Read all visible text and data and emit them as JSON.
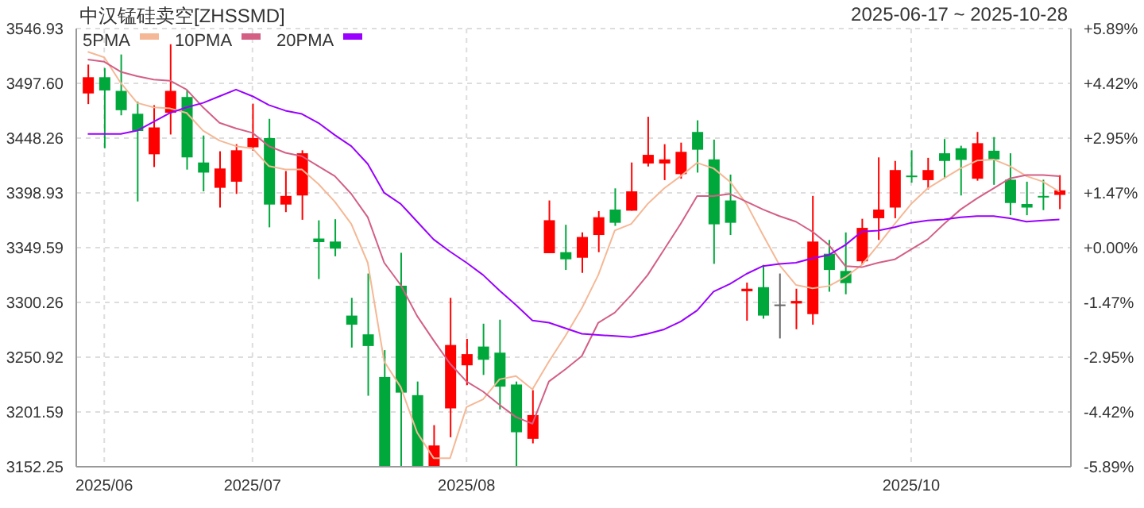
{
  "chart_data": {
    "type": "candlestick",
    "title": "中汉锰硅卖空[ZHSSMD]",
    "subtitle": "2025-06-17 ~ 2025-10-28",
    "categories": [
      null,
      "2025/06",
      null,
      null,
      null,
      null,
      null,
      null,
      null,
      null,
      "2025/07",
      null,
      null,
      null,
      null,
      null,
      null,
      null,
      null,
      null,
      null,
      null,
      null,
      "2025/08",
      null,
      null,
      null,
      null,
      null,
      null,
      null,
      null,
      null,
      null,
      null,
      null,
      null,
      null,
      null,
      null,
      null,
      null,
      null,
      null,
      null,
      null,
      null,
      null,
      null,
      null,
      "2025/10",
      null,
      null,
      null,
      null,
      null,
      null,
      null,
      null,
      null
    ],
    "ohlc": [
      [
        3488.5,
        3514.5,
        3478.9,
        3503.1
      ],
      [
        3503.1,
        3511.3,
        3439.1,
        3491.2
      ],
      [
        3490.8,
        3523.6,
        3468.8,
        3473.4
      ],
      [
        3470.2,
        3481.2,
        3391.2,
        3454.7
      ],
      [
        3433.7,
        3477.9,
        3422.2,
        3457.9
      ],
      [
        3471.1,
        3532.8,
        3451.5,
        3490.8
      ],
      [
        3485.3,
        3491.7,
        3419.9,
        3430.9
      ],
      [
        3426.3,
        3450.6,
        3400.3,
        3417.2
      ],
      [
        3403.5,
        3436.4,
        3385.7,
        3420.9
      ],
      [
        3409.0,
        3442.8,
        3398.0,
        3437.3
      ],
      [
        3440.0,
        3479.3,
        3436.9,
        3448.3
      ],
      [
        3448.3,
        3465.6,
        3367.9,
        3388.4
      ],
      [
        3388.4,
        3418.6,
        3381.6,
        3396.2
      ],
      [
        3396.6,
        3437.3,
        3374.7,
        3434.6
      ],
      [
        3357.8,
        3374.2,
        3321.3,
        3354.6
      ],
      [
        3355.1,
        3375.2,
        3341.8,
        3348.7
      ],
      [
        3288.4,
        3304.4,
        3259.6,
        3280.2
      ],
      [
        3271.5,
        3326.3,
        3216.2,
        3261.0
      ],
      [
        3233.1,
        3257.3,
        3152.3,
        3152.3
      ],
      [
        3315.3,
        3345.0,
        3152.3,
        3219.0
      ],
      [
        3216.7,
        3229.0,
        3152.3,
        3152.3
      ],
      [
        3152.3,
        3189.7,
        3152.3,
        3171.4
      ],
      [
        3204.8,
        3304.4,
        3178.8,
        3261.9
      ],
      [
        3243.6,
        3267.4,
        3225.8,
        3253.7
      ],
      [
        3260.5,
        3281.1,
        3234.9,
        3248.6
      ],
      [
        3255.0,
        3284.7,
        3203.9,
        3224.4
      ],
      [
        3226.3,
        3229.0,
        3152.3,
        3183.3
      ],
      [
        3177.4,
        3221.2,
        3173.3,
        3198.8
      ],
      [
        3344.6,
        3392.1,
        3344.6,
        3374.3
      ],
      [
        3345.5,
        3370.2,
        3329.5,
        3339.1
      ],
      [
        3340.5,
        3363.3,
        3326.8,
        3359.2
      ],
      [
        3361.0,
        3382.5,
        3345.5,
        3377.0
      ],
      [
        3383.9,
        3403.0,
        3369.2,
        3372.0
      ],
      [
        3382.9,
        3426.3,
        3382.9,
        3400.3
      ],
      [
        3425.4,
        3467.5,
        3422.7,
        3433.2
      ],
      [
        3425.4,
        3442.8,
        3410.4,
        3429.1
      ],
      [
        3415.8,
        3444.2,
        3411.7,
        3435.9
      ],
      [
        3453.8,
        3464.3,
        3417.2,
        3437.8
      ],
      [
        3429.1,
        3446.9,
        3335.0,
        3370.6
      ],
      [
        3392.1,
        3415.4,
        3361.0,
        3372.0
      ],
      [
        3310.3,
        3318.1,
        3283.8,
        3312.6
      ],
      [
        3314.0,
        3334.1,
        3285.6,
        3288.4
      ],
      [
        3298.4,
        3326.3,
        3267.8,
        3298.4
      ],
      [
        3299.3,
        3312.6,
        3276.1,
        3301.6
      ],
      [
        3289.7,
        3396.2,
        3280.2,
        3355.1
      ],
      [
        3344.1,
        3356.5,
        3309.9,
        3329.5
      ],
      [
        3328.6,
        3363.3,
        3307.6,
        3317.6
      ],
      [
        3337.3,
        3375.6,
        3334.1,
        3367.4
      ],
      [
        3376.1,
        3430.9,
        3356.5,
        3383.9
      ],
      [
        3385.7,
        3427.7,
        3376.1,
        3419.5
      ],
      [
        3414.5,
        3437.3,
        3408.1,
        3414.0
      ],
      [
        3410.4,
        3430.5,
        3402.1,
        3419.5
      ],
      [
        3434.6,
        3447.4,
        3411.7,
        3427.7
      ],
      [
        3439.1,
        3441.4,
        3396.6,
        3428.6
      ],
      [
        3411.7,
        3453.8,
        3409.9,
        3443.7
      ],
      [
        3436.9,
        3449.2,
        3406.2,
        3429.1
      ],
      [
        3410.8,
        3434.6,
        3378.8,
        3389.8
      ],
      [
        3388.9,
        3409.0,
        3378.8,
        3385.7
      ],
      [
        3396.2,
        3410.8,
        3383.4,
        3395.7
      ],
      [
        3397.1,
        3414.9,
        3384.3,
        3401.2
      ]
    ],
    "colors": [
      "#ff0000",
      "#00a83c",
      "#00a83c",
      "#00a83c",
      "#ff0000",
      "#ff0000",
      "#00a83c",
      "#00a83c",
      "#ff0000",
      "#ff0000",
      "#ff0000",
      "#00a83c",
      "#ff0000",
      "#ff0000",
      "#00a83c",
      "#00a83c",
      "#00a83c",
      "#00a83c",
      "#00a83c",
      "#00a83c",
      "#00a83c",
      "#ff0000",
      "#ff0000",
      "#ff0000",
      "#00a83c",
      "#00a83c",
      "#00a83c",
      "#ff0000",
      "#ff0000",
      "#00a83c",
      "#ff0000",
      "#ff0000",
      "#00a83c",
      "#ff0000",
      "#ff0000",
      "#ff0000",
      "#ff0000",
      "#00a83c",
      "#00a83c",
      "#00a83c",
      "#ff0000",
      "#00a83c",
      "#666666",
      "#ff0000",
      "#ff0000",
      "#00a83c",
      "#00a83c",
      "#ff0000",
      "#ff0000",
      "#ff0000",
      "#00a83c",
      "#ff0000",
      "#00a83c",
      "#00a83c",
      "#ff0000",
      "#00a83c",
      "#00a83c",
      "#00a83c",
      "#00a83c",
      "#ff0000"
    ],
    "series": [
      {
        "name": "5PMA",
        "type": "line",
        "color": "#f5b896",
        "values": [
          3526,
          3521,
          3498,
          3480,
          3476,
          3475,
          3471,
          3455,
          3446,
          3441,
          3439,
          3423,
          3420,
          3420,
          3407,
          3391,
          3371,
          3336,
          3247,
          3224,
          3183,
          3160,
          3160,
          3206,
          3213,
          3231,
          3234,
          3222,
          3247,
          3270,
          3295,
          3325,
          3365,
          3371,
          3389,
          3403,
          3414,
          3426,
          3421,
          3409,
          3389,
          3361,
          3334,
          3316,
          3313,
          3315,
          3323,
          3334,
          3352,
          3371,
          3389,
          3403,
          3412,
          3421,
          3428,
          3429,
          3423,
          3414,
          3409,
          3400
        ]
      },
      {
        "name": "10PMA",
        "type": "line",
        "color": "#d35f85",
        "values": [
          3519,
          3517,
          3508,
          3504,
          3501,
          3500,
          3492,
          3476,
          3462,
          3457,
          3453,
          3441,
          3435,
          3432,
          3423,
          3414,
          3398,
          3377,
          3336,
          3316,
          3288,
          3266,
          3245,
          3229,
          3220,
          3208,
          3197,
          3191,
          3229,
          3240,
          3252,
          3282,
          3291,
          3307,
          3325,
          3348,
          3371,
          3396,
          3396,
          3398,
          3391,
          3384,
          3378,
          3373,
          3364,
          3352,
          3333,
          3332,
          3336,
          3339,
          3348,
          3357,
          3371,
          3384,
          3394,
          3403,
          3412,
          3415,
          3415,
          3414
        ]
      },
      {
        "name": "20PMA",
        "type": "line",
        "color": "#9900ff",
        "values": [
          3452,
          3452,
          3452,
          3455,
          3463,
          3471,
          3476,
          3480,
          3486,
          3492,
          3486,
          3478,
          3473,
          3470,
          3462,
          3451,
          3441,
          3425,
          3399,
          3389,
          3373,
          3357,
          3346,
          3336,
          3325,
          3311,
          3298,
          3284,
          3282,
          3277,
          3272,
          3271,
          3270,
          3269,
          3272,
          3276,
          3283,
          3293,
          3310,
          3317,
          3326,
          3333,
          3335,
          3336,
          3340,
          3343,
          3352,
          3364,
          3365,
          3368,
          3372,
          3374,
          3375,
          3377,
          3378,
          3378,
          3376,
          3373,
          3374,
          3375
        ]
      }
    ],
    "ylim": [
      3152.25,
      3546.93
    ],
    "yticks": [
      3152.25,
      3201.59,
      3250.92,
      3300.26,
      3349.59,
      3398.93,
      3448.26,
      {
        "value": 3497.6,
        "label": "3497.60"
      },
      3546.93
    ],
    "y2lim": [
      -5.89,
      5.89
    ],
    "y2ticks": [
      {
        "value": -5.89,
        "label": "-5.89%"
      },
      {
        "value": -4.42,
        "label": "-4.42%"
      },
      {
        "value": -2.95,
        "label": "-2.95%"
      },
      {
        "value": -1.47,
        "label": "-1.47%"
      },
      {
        "value": 0,
        "label": "+0.00%"
      },
      {
        "value": 1.47,
        "label": "+1.47%"
      },
      {
        "value": 2.95,
        "label": "+2.95%"
      },
      {
        "value": 4.42,
        "label": "+4.42%"
      },
      {
        "value": 5.89,
        "label": "+5.89%"
      }
    ],
    "grid": true,
    "legend": "top left",
    "marker": "none"
  }
}
